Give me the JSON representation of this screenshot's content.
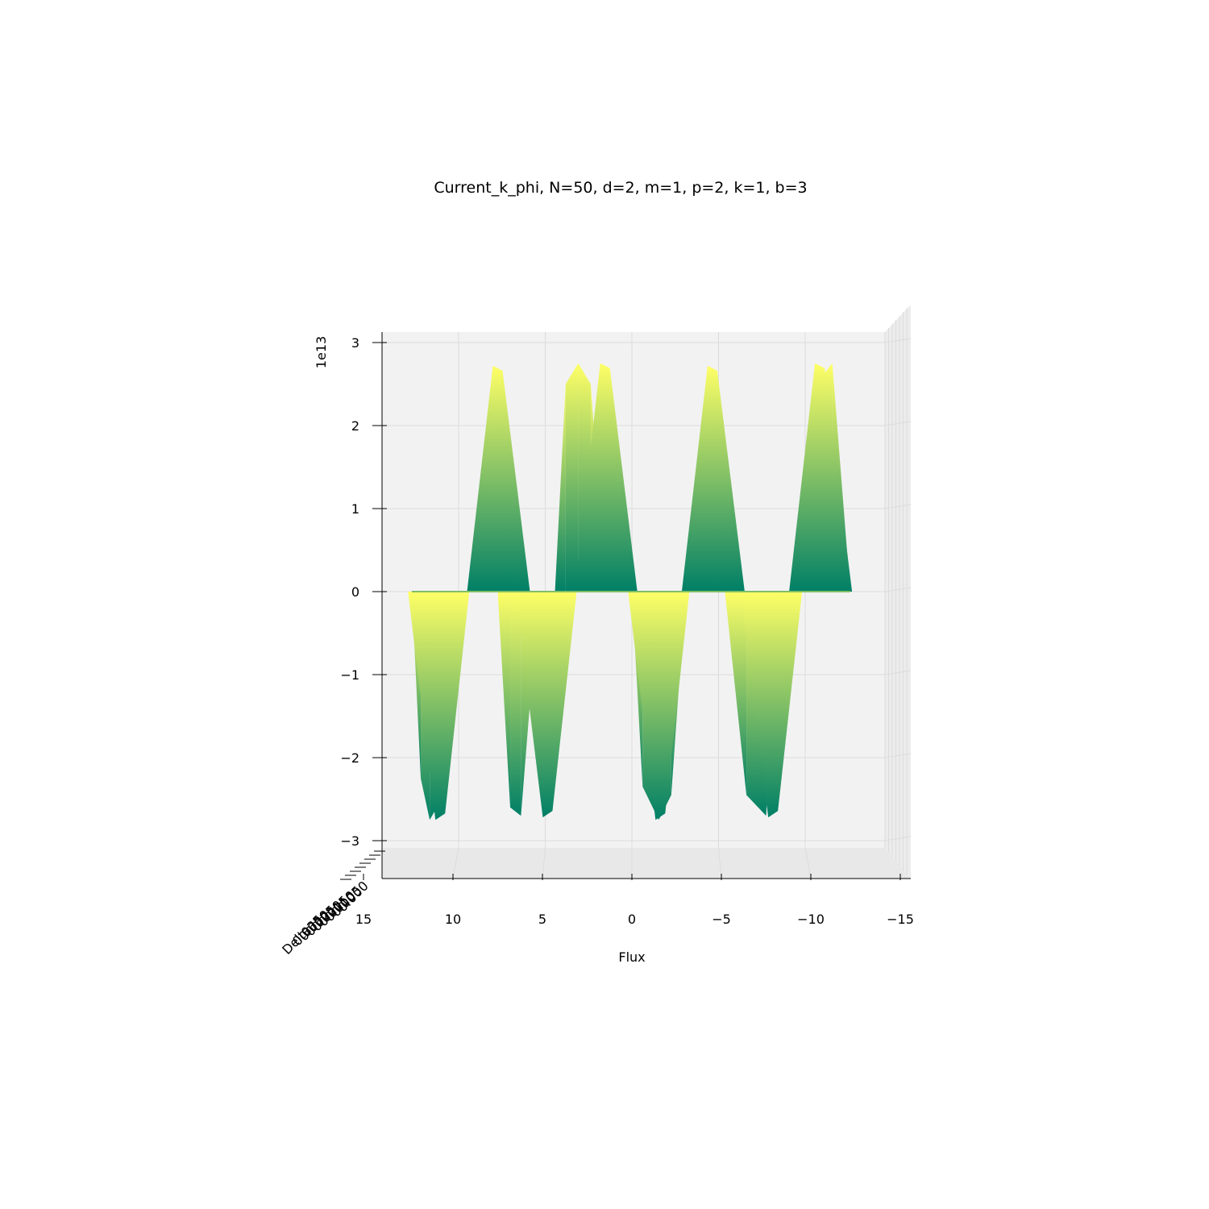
{
  "chart_data": {
    "type": "surface",
    "title": "Current_k_phi, N=50, d=2, m=1, p=2, k=1, b=3",
    "xlabel": "Flux",
    "ylabel": "Delta",
    "zlabel": "",
    "z_offset_label": "1e13",
    "xlim": [
      15,
      -15
    ],
    "zlim": [
      -3,
      3
    ],
    "x_ticks": [
      "15",
      "10",
      "5",
      "0",
      "−5",
      "−10",
      "−15"
    ],
    "z_ticks": [
      "3",
      "2",
      "1",
      "0",
      "−1",
      "−2",
      "−3"
    ],
    "delta_ticks": [
      "0.000",
      "0.005",
      "0.010",
      "0.015",
      "0.020",
      "0.025",
      "0.030",
      "0.035"
    ],
    "colormap": "summer",
    "colors": {
      "low": "#007f66",
      "high": "#ffff66",
      "pane": "#f2f2f2"
    },
    "series": [
      {
        "x": [
          12.3,
          11.8,
          11.3,
          10.5,
          9.8,
          8.7,
          8.0,
          7.5,
          6.8,
          6.2,
          5.2,
          4.9,
          4.3,
          3.7,
          3.0,
          2.3,
          1.5,
          0.8,
          0.0,
          -0.6,
          -1.5,
          -2.2,
          -3.0,
          -3.7,
          -4.2,
          -5.2,
          -6.4,
          -7.5,
          -8.3,
          -8.8,
          -9.6,
          -10.3,
          -11.2,
          -12.2
        ],
        "z": [
          0.0,
          -2.25,
          -2.75,
          -2.45,
          0.0,
          0.0,
          0.0,
          0.0,
          -2.6,
          -2.7,
          0.0,
          0.0,
          0.0,
          2.5,
          2.75,
          2.5,
          0.0,
          0.0,
          0.0,
          -2.35,
          -2.75,
          -2.45,
          0.0,
          0.0,
          0.0,
          0.0,
          -2.45,
          -2.7,
          0.0,
          0.0,
          0.0,
          2.5,
          2.75,
          0.0
        ]
      }
    ],
    "peaks": [
      {
        "x": 7.5,
        "z": 2.72
      },
      {
        "x": 1.5,
        "z": 2.75
      },
      {
        "x": -4.5,
        "z": 2.72
      },
      {
        "x": -10.5,
        "z": 2.75
      }
    ],
    "troughs": [
      {
        "x": 10.8,
        "z": -2.75
      },
      {
        "x": 4.8,
        "z": -2.72
      },
      {
        "x": -1.5,
        "z": -2.75
      },
      {
        "x": -7.8,
        "z": -2.72
      }
    ],
    "grid": true
  }
}
